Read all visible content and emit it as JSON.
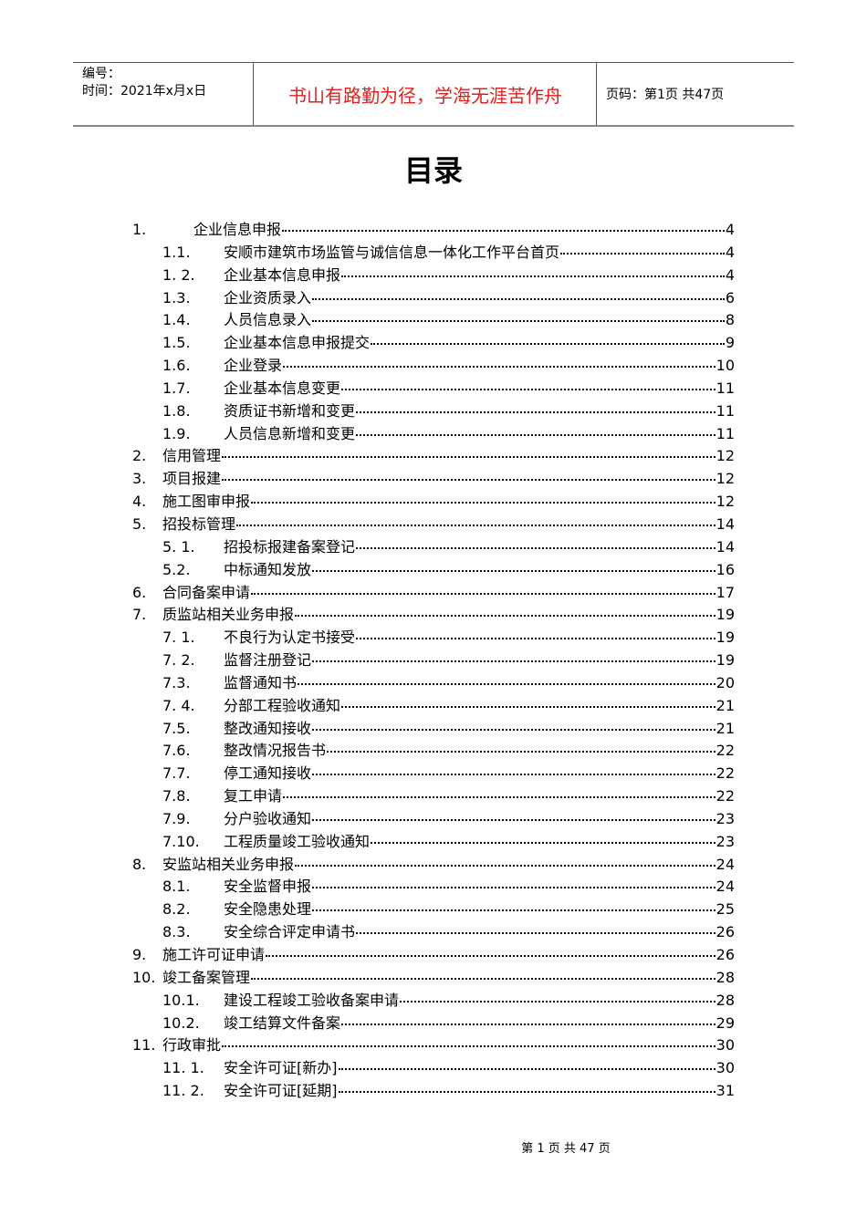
{
  "header": {
    "serial_label": "编号：",
    "date_label": "时间：2021年x月x日",
    "motto": "书山有路勤为径，学海无涯苦作舟",
    "page_info": "页码：第1页  共47页",
    "motto_color": "#e0201c"
  },
  "title": "目录",
  "toc": [
    {
      "level": 1,
      "num": "1.",
      "title": "企业信息申报",
      "page": "4"
    },
    {
      "level": 2,
      "num": "1.1.",
      "title": "安顺市建筑市场监管与诚信信息一体化工作平台首页",
      "page": "4"
    },
    {
      "level": 2,
      "num": "1. 2.",
      "title": "企业基本信息申报",
      "page": "4"
    },
    {
      "level": 2,
      "num": "1.3.",
      "title": "企业资质录入",
      "page": "6"
    },
    {
      "level": 2,
      "num": "1.4.",
      "title": "人员信息录入",
      "page": "8"
    },
    {
      "level": 2,
      "num": "1.5.",
      "title": "企业基本信息申报提交",
      "page": "9"
    },
    {
      "level": 2,
      "num": "1.6.",
      "title": "企业登录",
      "page": "10"
    },
    {
      "level": 2,
      "num": "1.7.",
      "title": "企业基本信息变更",
      "page": "11"
    },
    {
      "level": 2,
      "num": "1.8.",
      "title": "资质证书新增和变更",
      "page": "11"
    },
    {
      "level": 2,
      "num": "1.9.",
      "title": "人员信息新增和变更",
      "page": "11"
    },
    {
      "level": 1,
      "num": "2.",
      "title": "信用管理",
      "page": "12"
    },
    {
      "level": 1,
      "num": "3.",
      "title": "项目报建",
      "page": "12"
    },
    {
      "level": 1,
      "num": "4.",
      "title": "施工图审申报",
      "page": "12"
    },
    {
      "level": 1,
      "num": "5.",
      "title": "招投标管理",
      "page": "14"
    },
    {
      "level": 2,
      "num": "5. 1.",
      "title": "招投标报建备案登记",
      "page": "14"
    },
    {
      "level": 2,
      "num": "5.2.",
      "title": "中标通知发放",
      "page": "16"
    },
    {
      "level": 1,
      "num": "6.",
      "title": "合同备案申请",
      "page": "17"
    },
    {
      "level": 1,
      "num": "7.",
      "title": "质监站相关业务申报",
      "page": "19"
    },
    {
      "level": 2,
      "num": "7. 1.",
      "title": "不良行为认定书接受",
      "page": "19"
    },
    {
      "level": 2,
      "num": "7. 2.",
      "title": "监督注册登记",
      "page": "19"
    },
    {
      "level": 2,
      "num": "7.3.",
      "title": "监督通知书",
      "page": "20"
    },
    {
      "level": 2,
      "num": "7. 4.",
      "title": "分部工程验收通知",
      "page": "21"
    },
    {
      "level": 2,
      "num": "7.5.",
      "title": "整改通知接收",
      "page": "21"
    },
    {
      "level": 2,
      "num": "7.6.",
      "title": "整改情况报告书",
      "page": "22"
    },
    {
      "level": 2,
      "num": "7.7.",
      "title": "停工通知接收",
      "page": "22"
    },
    {
      "level": 2,
      "num": "7.8.",
      "title": "复工申请",
      "page": "22"
    },
    {
      "level": 2,
      "num": "7.9.",
      "title": "分户验收通知",
      "page": "23"
    },
    {
      "level": 2,
      "num": "7.10.",
      "title": "工程质量竣工验收通知",
      "page": "23"
    },
    {
      "level": 1,
      "num": "8.",
      "title": "安监站相关业务申报",
      "page": "24"
    },
    {
      "level": 2,
      "num": "8.1.",
      "title": "安全监督申报",
      "page": "24"
    },
    {
      "level": 2,
      "num": "8.2.",
      "title": "安全隐患处理",
      "page": "25"
    },
    {
      "level": 2,
      "num": "8.3.",
      "title": "安全综合评定申请书",
      "page": "26"
    },
    {
      "level": 1,
      "num": "9.",
      "title": "施工许可证申请",
      "page": "26"
    },
    {
      "level": 1,
      "num": "10.",
      "title": "竣工备案管理",
      "page": "28"
    },
    {
      "level": 2,
      "num": "10.1.",
      "title": "建设工程竣工验收备案申请",
      "page": "28"
    },
    {
      "level": 2,
      "num": "10.2.",
      "title": "竣工结算文件备案",
      "page": "29"
    },
    {
      "level": 1,
      "num": "11.",
      "title": "行政审批",
      "page": "30"
    },
    {
      "level": 2,
      "num": "11. 1.",
      "title": "安全许可证[新办]",
      "page": "30"
    },
    {
      "level": 2,
      "num": "11. 2.",
      "title": "安全许可证[延期]",
      "page": "31"
    }
  ],
  "footer": "第 1 页 共 47 页"
}
